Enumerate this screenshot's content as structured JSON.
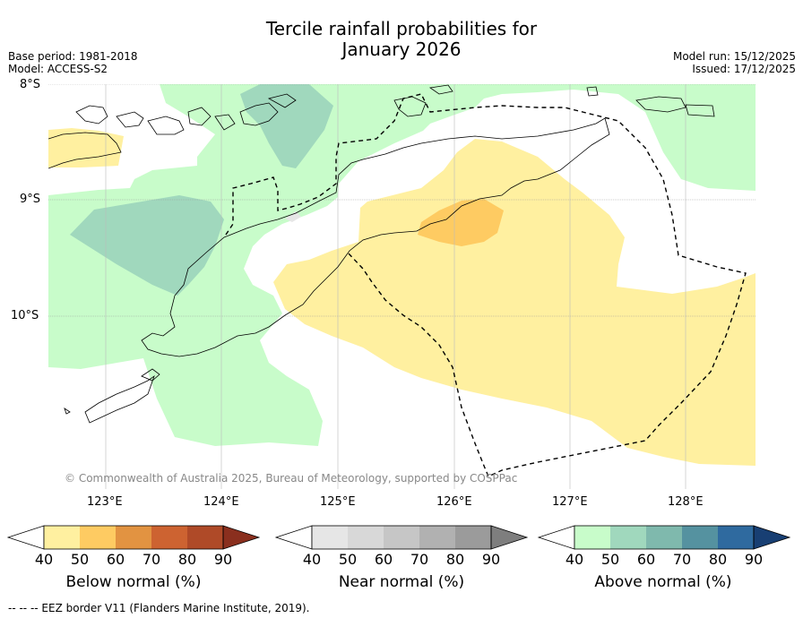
{
  "title": {
    "line1": "Tercile rainfall probabilities for",
    "line2": "January 2026"
  },
  "meta": {
    "base_period": "Base period: 1981-2018",
    "model": "Model: ACCESS-S2",
    "model_run": "Model run: 15/12/2025",
    "issued": "Issued: 17/12/2025"
  },
  "axes": {
    "lat_labels": [
      "8°S",
      "9°S",
      "10°S"
    ],
    "lon_labels": [
      "123°E",
      "124°E",
      "125°E",
      "126°E",
      "127°E",
      "128°E"
    ]
  },
  "copyright": "© Commonwealth of Australia 2025, Bureau of Meteorology, supported by COSPPac",
  "colorbars": [
    {
      "label": "Below normal (%)",
      "ticks": [
        "40",
        "50",
        "60",
        "70",
        "80",
        "90"
      ],
      "colors": [
        "#ffffff",
        "#fff0a0",
        "#fecb62",
        "#e29341",
        "#cd6331",
        "#af4a28",
        "#8a2f1e"
      ]
    },
    {
      "label": "Near normal (%)",
      "ticks": [
        "40",
        "50",
        "60",
        "70",
        "80",
        "90"
      ],
      "colors": [
        "#ffffff",
        "#e6e6e6",
        "#d8d8d8",
        "#c6c6c6",
        "#b1b1b1",
        "#9b9b9b",
        "#7e7e7e"
      ]
    },
    {
      "label": "Above normal (%)",
      "ticks": [
        "40",
        "50",
        "60",
        "70",
        "80",
        "90"
      ],
      "colors": [
        "#ffffff",
        "#c8fcca",
        "#a0d8bd",
        "#7fb9ad",
        "#5592a0",
        "#2f6a9f",
        "#183f73"
      ]
    }
  ],
  "footnote": "--  --  -- EEZ border V11 (Flanders Marine Institute, 2019).",
  "palette": {
    "above_40_50": "#c8fcca",
    "above_50_60": "#a0d8bd",
    "below_40_50": "#fff0a0",
    "below_50_60": "#fecb62"
  }
}
